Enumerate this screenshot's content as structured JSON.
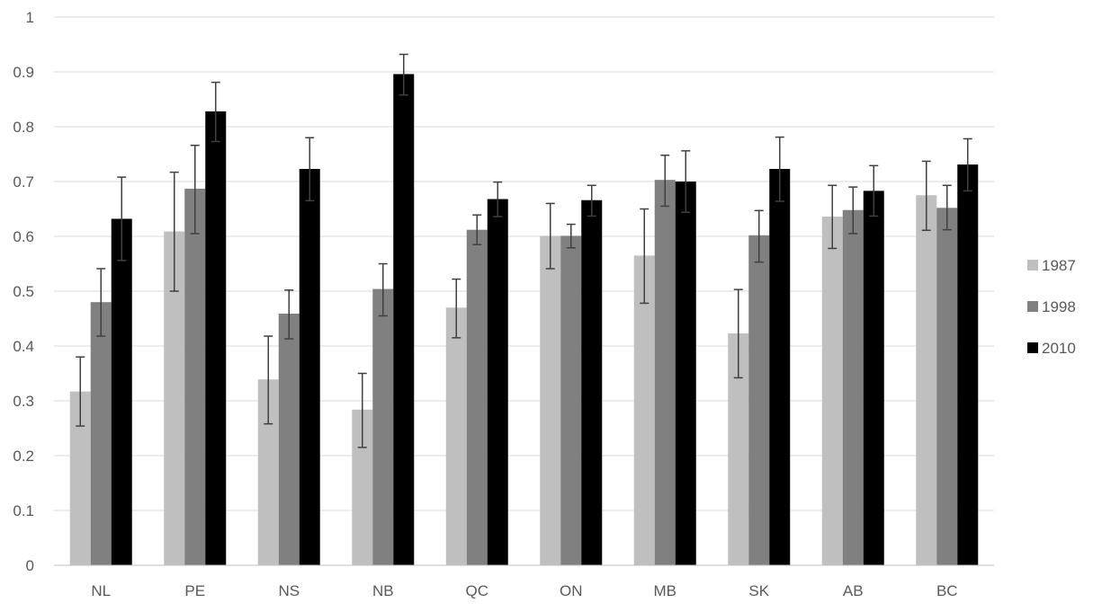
{
  "chart_data": {
    "type": "bar",
    "title": "",
    "xlabel": "",
    "ylabel": "",
    "categories": [
      "NL",
      "PE",
      "NS",
      "NB",
      "QC",
      "ON",
      "MB",
      "SK",
      "AB",
      "BC"
    ],
    "series": [
      {
        "name": "1987",
        "color": "#bfbfbf",
        "values": [
          0.317,
          0.609,
          0.339,
          0.284,
          0.47,
          0.601,
          0.565,
          0.423,
          0.636,
          0.675
        ],
        "error_low": [
          0.254,
          0.5,
          0.258,
          0.215,
          0.415,
          0.541,
          0.478,
          0.342,
          0.578,
          0.611
        ],
        "error_high": [
          0.38,
          0.717,
          0.418,
          0.35,
          0.522,
          0.66,
          0.65,
          0.503,
          0.693,
          0.737
        ]
      },
      {
        "name": "1998",
        "color": "#808080",
        "values": [
          0.48,
          0.687,
          0.459,
          0.504,
          0.612,
          0.601,
          0.703,
          0.602,
          0.648,
          0.652
        ],
        "error_low": [
          0.418,
          0.605,
          0.413,
          0.455,
          0.585,
          0.579,
          0.655,
          0.553,
          0.605,
          0.612
        ],
        "error_high": [
          0.541,
          0.766,
          0.502,
          0.55,
          0.639,
          0.622,
          0.748,
          0.647,
          0.69,
          0.693
        ]
      },
      {
        "name": "2010",
        "color": "#000000",
        "values": [
          0.632,
          0.828,
          0.723,
          0.896,
          0.668,
          0.666,
          0.7,
          0.723,
          0.683,
          0.731
        ],
        "error_low": [
          0.556,
          0.773,
          0.665,
          0.858,
          0.636,
          0.637,
          0.644,
          0.664,
          0.637,
          0.683
        ],
        "error_high": [
          0.708,
          0.881,
          0.78,
          0.932,
          0.699,
          0.693,
          0.756,
          0.781,
          0.729,
          0.778
        ]
      }
    ],
    "ylim": [
      0,
      1
    ],
    "y_ticks": [
      "0",
      "0.1",
      "0.2",
      "0.3",
      "0.4",
      "0.5",
      "0.6",
      "0.7",
      "0.8",
      "0.9",
      "1"
    ],
    "grid": true,
    "error_bars": true,
    "legend_position": "right",
    "gridline_color": "#d9d9d9",
    "axis_line_color": "#bfbfbf",
    "error_bar_color": "#404040",
    "text_color": "#595959"
  }
}
